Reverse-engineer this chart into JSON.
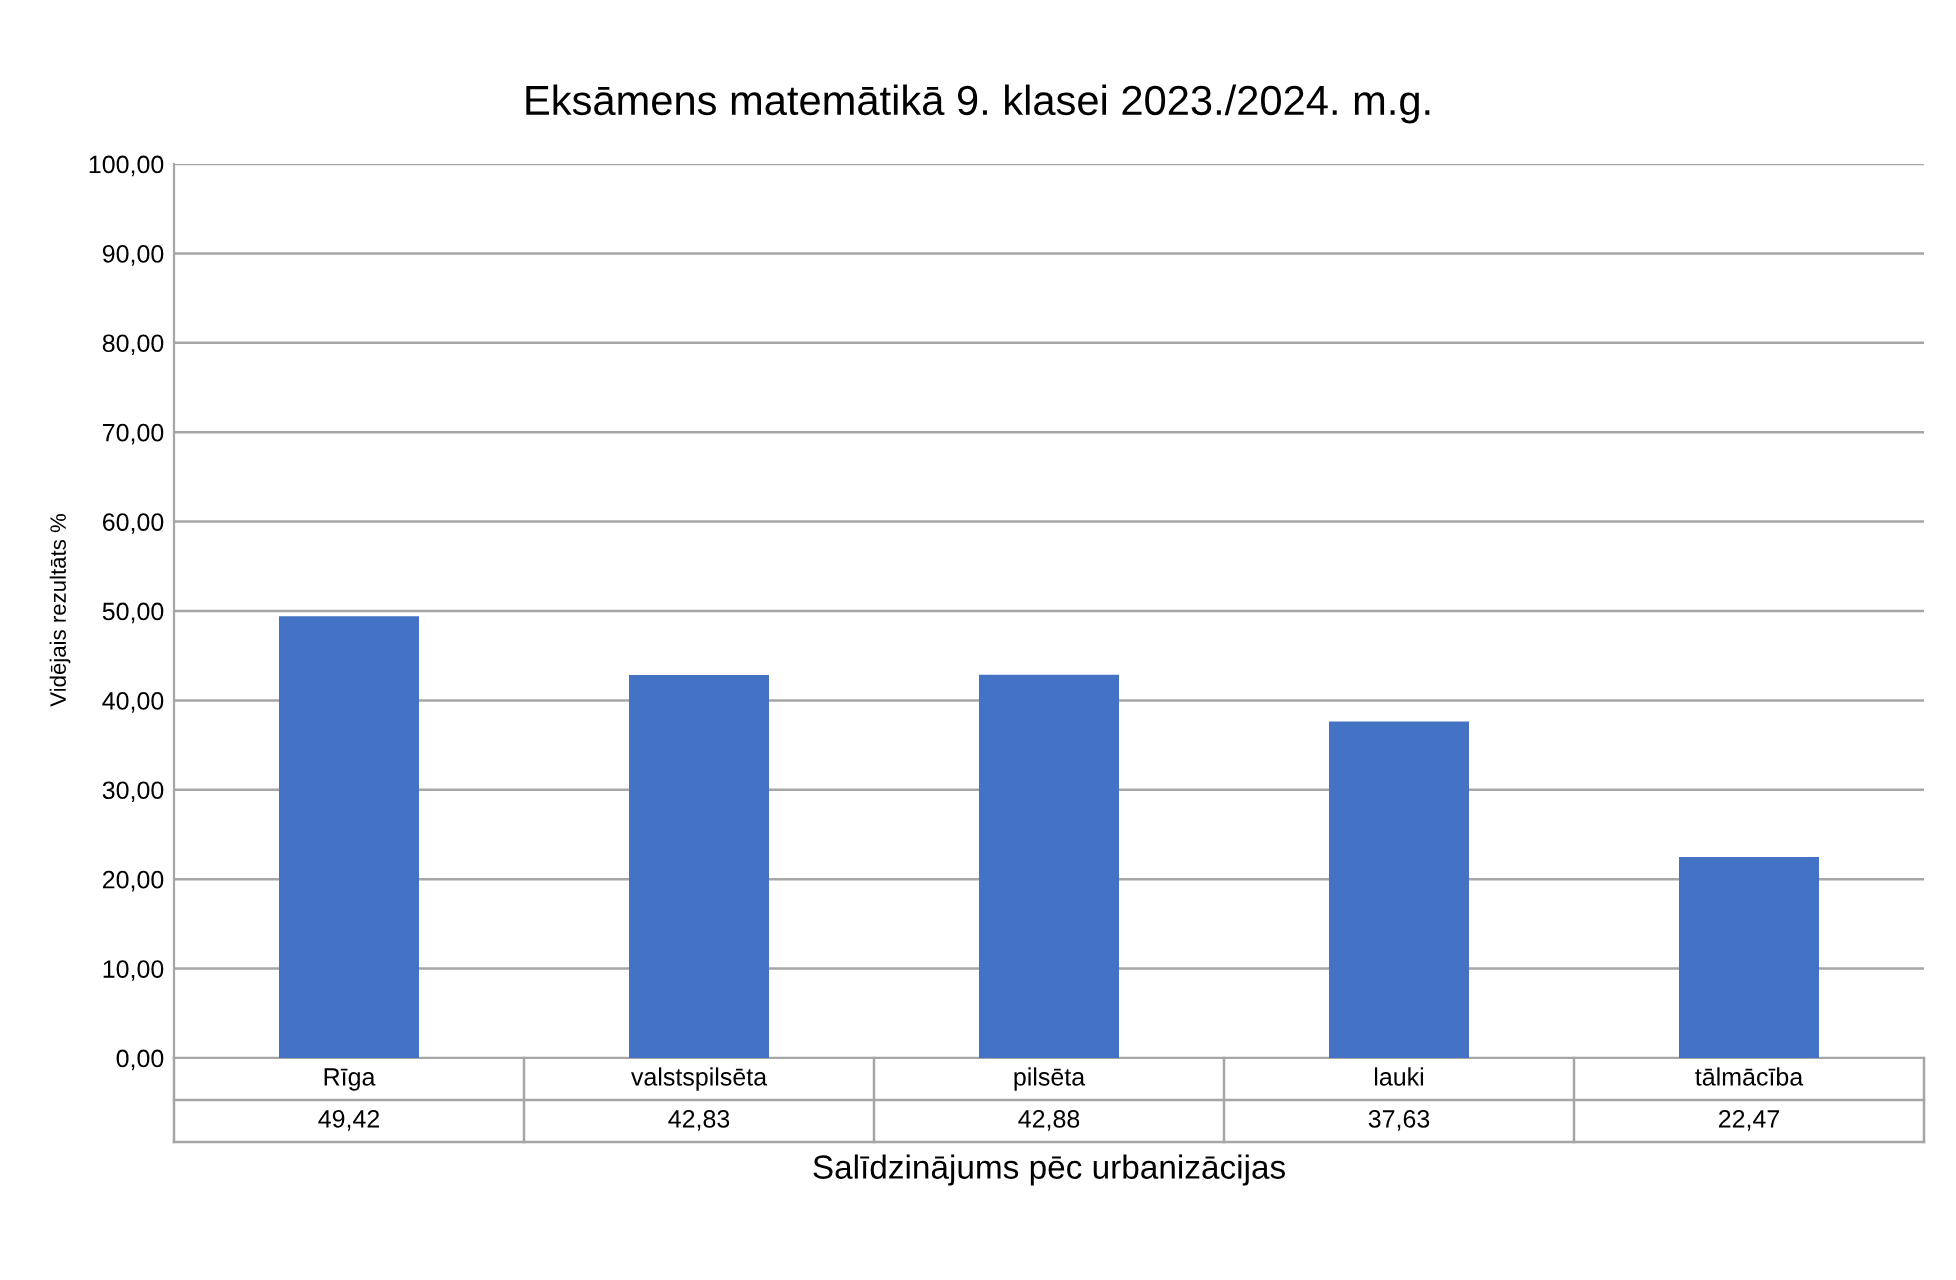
{
  "chart_data": {
    "type": "bar",
    "title": "Eksāmens matemātikā 9. klasei 2023./2024. m.g.",
    "xlabel": "Salīdzinājums pēc urbanizācijas",
    "ylabel": "Vidējais rezultāts %",
    "categories": [
      "Rīga",
      "valstspilsēta",
      "pilsēta",
      "lauki",
      "tālmācība"
    ],
    "values": [
      49.42,
      42.83,
      42.88,
      37.63,
      22.47
    ],
    "value_labels": [
      "49,42",
      "42,83",
      "42,88",
      "37,63",
      "22,47"
    ],
    "color": "#4472c4",
    "ylim": [
      0,
      100
    ],
    "yticks": [
      {
        "value": 0,
        "label": "0,00"
      },
      {
        "value": 10,
        "label": "10,00"
      },
      {
        "value": 20,
        "label": "20,00"
      },
      {
        "value": 30,
        "label": "30,00"
      },
      {
        "value": 40,
        "label": "40,00"
      },
      {
        "value": 50,
        "label": "50,00"
      },
      {
        "value": 60,
        "label": "60,00"
      },
      {
        "value": 70,
        "label": "70,00"
      },
      {
        "value": 80,
        "label": "80,00"
      },
      {
        "value": 90,
        "label": "90,00"
      },
      {
        "value": 100,
        "label": "100,00"
      }
    ],
    "grid": "y",
    "legend": false
  }
}
